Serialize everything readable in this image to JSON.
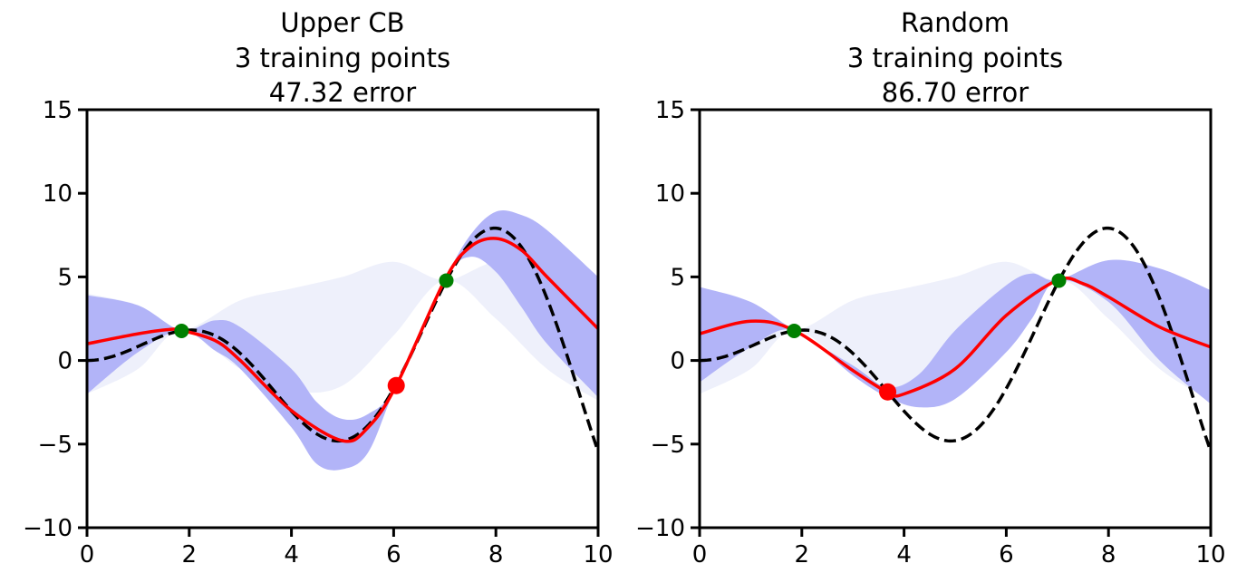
{
  "chart_data": [
    {
      "type": "line",
      "title_lines": [
        "Upper CB",
        "3 training points",
        "47.32 error"
      ],
      "xlim": [
        0,
        10
      ],
      "ylim": [
        -10,
        15
      ],
      "xticks": [
        0,
        2,
        4,
        6,
        8,
        10
      ],
      "xtick_labels": [
        "0",
        "2",
        "4",
        "6",
        "8",
        "10"
      ],
      "yticks": [
        -10,
        -5,
        0,
        5,
        10,
        15
      ],
      "ytick_labels": [
        "−10",
        "−5",
        "0",
        "5",
        "10",
        "15"
      ],
      "true_function": "x*sin(x)",
      "prior_band": {
        "x": [
          0,
          1,
          1.85,
          3,
          4,
          5,
          6,
          7,
          8,
          9,
          10
        ],
        "upper": [
          4.0,
          3.3,
          1.8,
          3.6,
          4.3,
          5.0,
          5.9,
          4.8,
          5.9,
          5.5,
          4.2
        ],
        "lower": [
          -2.0,
          -0.5,
          1.8,
          -0.5,
          -1.8,
          -1.5,
          1.5,
          4.8,
          2.5,
          -0.5,
          -2.4
        ]
      },
      "posterior_band": {
        "x": [
          0,
          1,
          1.85,
          2.5,
          3,
          4,
          4.5,
          5,
          5.5,
          6.05,
          7,
          7.5,
          8,
          8.5,
          9,
          10
        ],
        "upper": [
          3.9,
          3.3,
          1.8,
          2.4,
          2.0,
          -0.5,
          -2.5,
          -3.5,
          -3.2,
          -1.5,
          4.8,
          7.5,
          8.9,
          8.7,
          7.8,
          5.0
        ],
        "lower": [
          -2.0,
          0.5,
          1.8,
          0.6,
          -0.5,
          -4.0,
          -6.2,
          -6.5,
          -5.5,
          -1.5,
          4.8,
          6.2,
          5.3,
          3.2,
          1.0,
          -2.2
        ]
      },
      "mean": {
        "x": [
          0,
          1,
          1.6,
          1.85,
          2.5,
          3,
          4,
          5,
          5.5,
          6.05,
          7,
          7.5,
          8,
          8.5,
          9,
          10
        ],
        "y": [
          1.0,
          1.6,
          1.85,
          1.8,
          1.2,
          0.0,
          -3.0,
          -4.8,
          -4.0,
          -1.5,
          4.8,
          6.8,
          7.3,
          6.6,
          5.0,
          1.9
        ]
      },
      "training_points": [
        {
          "x": 1.85,
          "y": 1.77
        },
        {
          "x": 7.03,
          "y": 4.78
        }
      ],
      "new_point": {
        "x": 6.05,
        "y": -1.5
      }
    },
    {
      "type": "line",
      "title_lines": [
        "Random",
        "3 training points",
        "86.70 error"
      ],
      "xlim": [
        0,
        10
      ],
      "ylim": [
        -10,
        15
      ],
      "xticks": [
        0,
        2,
        4,
        6,
        8,
        10
      ],
      "xtick_labels": [
        "0",
        "2",
        "4",
        "6",
        "8",
        "10"
      ],
      "yticks": [
        -10,
        -5,
        0,
        5,
        10,
        15
      ],
      "ytick_labels": [
        "−10",
        "−5",
        "0",
        "5",
        "10",
        "15"
      ],
      "true_function": "x*sin(x)",
      "prior_band": {
        "x": [
          0,
          1,
          1.85,
          3,
          4,
          5,
          6,
          7,
          8,
          9,
          10
        ],
        "upper": [
          4.0,
          3.3,
          1.8,
          3.6,
          4.3,
          5.0,
          5.9,
          4.8,
          5.9,
          5.5,
          4.2
        ],
        "lower": [
          -2.0,
          -0.5,
          1.8,
          -0.5,
          -1.8,
          -1.5,
          1.5,
          4.8,
          2.5,
          -0.5,
          -2.4
        ]
      },
      "posterior_band": {
        "x": [
          0,
          1,
          1.85,
          3,
          3.68,
          4.3,
          5,
          6,
          6.5,
          7,
          8,
          9,
          10
        ],
        "upper": [
          4.4,
          3.5,
          1.8,
          -0.3,
          -1.6,
          -0.8,
          1.8,
          4.5,
          5.2,
          4.8,
          6.0,
          5.5,
          4.2
        ],
        "lower": [
          -1.3,
          0.8,
          1.8,
          -0.9,
          -2.2,
          -2.8,
          -2.3,
          0.5,
          2.5,
          4.8,
          3.5,
          0.0,
          -2.6
        ]
      },
      "mean": {
        "x": [
          0,
          1,
          1.85,
          3,
          3.68,
          4,
          5,
          6,
          7,
          7.5,
          8,
          9,
          10
        ],
        "y": [
          1.6,
          2.35,
          1.8,
          -0.6,
          -1.9,
          -2.0,
          -0.5,
          2.7,
          4.8,
          4.6,
          3.8,
          2.0,
          0.8
        ]
      },
      "training_points": [
        {
          "x": 1.85,
          "y": 1.77
        },
        {
          "x": 7.03,
          "y": 4.78
        }
      ],
      "new_point": {
        "x": 3.68,
        "y": -1.88
      }
    }
  ],
  "colors": {
    "prior": "#eef0fb",
    "posterior": "#aeb0f8",
    "mean": "#ff0000",
    "truth": "#000000",
    "train": "#008000",
    "new": "#ff0000"
  }
}
